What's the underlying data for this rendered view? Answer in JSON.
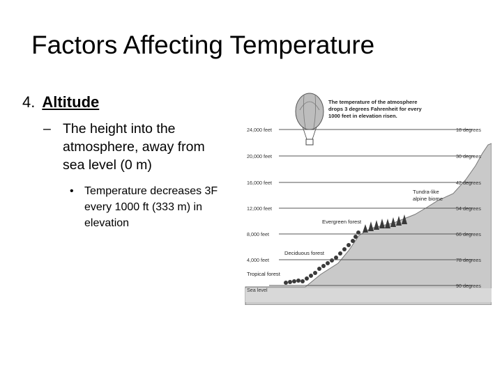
{
  "slide": {
    "title": "Factors Affecting Temperature",
    "point": {
      "number": "4.",
      "heading": "Altitude"
    },
    "sub_point": {
      "marker": "–",
      "text": "The height into the atmosphere, away from sea level (0 m)"
    },
    "sub_sub_point": {
      "marker": "•",
      "text": "Temperature decreases 3F every 1000 ft  (333 m) in elevation"
    }
  },
  "diagram": {
    "caption_lines": [
      "The temperature of the atmosphere",
      "drops 3 degrees Fahrenheit for every",
      "1000 feet in elevation risen."
    ],
    "levels": [
      {
        "altitude": "24,000 feet",
        "temperature": "18 degrees"
      },
      {
        "altitude": "20,000 feet",
        "temperature": "30 degrees"
      },
      {
        "altitude": "16,000 feet",
        "temperature": "42 degrees"
      },
      {
        "altitude": "12,000 feet",
        "temperature": "54 degrees"
      },
      {
        "altitude": "8,000 feet",
        "temperature": "66 degrees"
      },
      {
        "altitude": "4,000 feet",
        "temperature": "78 degrees"
      },
      {
        "altitude": "Sea level",
        "temperature": "90 degrees"
      }
    ],
    "biomes": {
      "tundra_line1": "Tundra-like",
      "tundra_line2": "alpine biome",
      "evergreen": "Evergreen forest",
      "deciduous": "Deciduous forest",
      "tropical": "Tropical forest"
    },
    "colors": {
      "mountain": "#c9c9c9",
      "trees": "#3a3a3a",
      "lines": "#555555",
      "balloon": "#bdbdbd"
    }
  }
}
